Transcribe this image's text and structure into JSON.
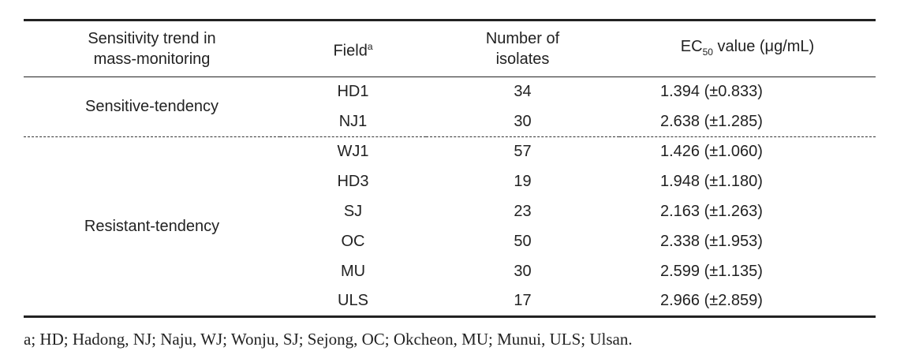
{
  "table": {
    "headers": [
      {
        "text": "Sensitivity trend in mass-monitoring"
      },
      {
        "text": "Field",
        "sup": "a"
      },
      {
        "text": "Number of isolates"
      },
      {
        "text": "EC",
        "sub": "50",
        "suffix": " value (μg/mL)"
      }
    ],
    "groups": [
      {
        "label": "Sensitive-tendency",
        "rows": [
          {
            "field": "HD1",
            "isolates": 34,
            "ec50": "1.394 (±0.833)"
          },
          {
            "field": "NJ1",
            "isolates": 30,
            "ec50": "2.638 (±1.285)"
          }
        ]
      },
      {
        "label": "Resistant-tendency",
        "rows": [
          {
            "field": "WJ1",
            "isolates": 57,
            "ec50": "1.426 (±1.060)"
          },
          {
            "field": "HD3",
            "isolates": 19,
            "ec50": "1.948 (±1.180)"
          },
          {
            "field": "SJ",
            "isolates": 23,
            "ec50": "2.163 (±1.263)"
          },
          {
            "field": "OC",
            "isolates": 50,
            "ec50": "2.338 (±1.953)"
          },
          {
            "field": "MU",
            "isolates": 30,
            "ec50": "2.599 (±1.135)"
          },
          {
            "field": "ULS",
            "isolates": 17,
            "ec50": "2.966 (±2.859)"
          }
        ]
      }
    ]
  },
  "footnote": "a; HD; Hadong, NJ; Naju, WJ; Wonju, SJ; Sejong, OC; Okcheon, MU; Munui, ULS; Ulsan."
}
